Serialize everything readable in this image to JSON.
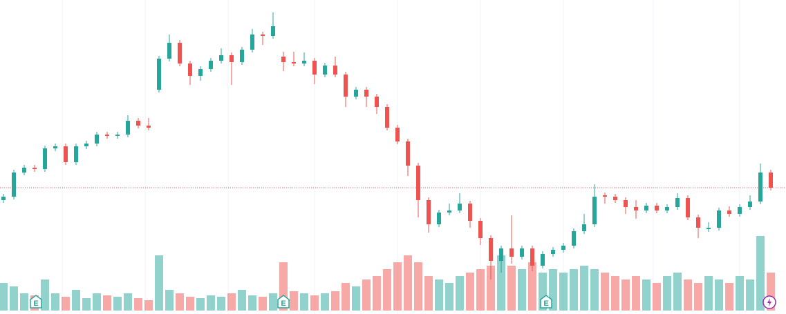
{
  "chart_data": {
    "type": "candlestick",
    "up_color": "#26a69a",
    "down_color": "#ef5350",
    "volume_up_color": "rgba(38,166,154,0.5)",
    "volume_down_color": "rgba(239,83,80,0.5)",
    "ylim": [
      0,
      455
    ],
    "volume_ylim": [
      0,
      450
    ],
    "event_label": "E",
    "open": [
      165,
      170,
      205,
      212,
      210,
      240,
      243,
      220,
      243,
      247,
      260,
      258,
      260,
      280,
      273,
      325,
      370,
      393,
      363,
      345,
      355,
      367,
      375,
      365,
      383,
      405,
      403,
      373,
      365,
      363,
      367,
      347,
      360,
      347,
      315,
      325,
      315,
      300,
      270,
      250,
      215,
      165,
      130,
      147,
      150,
      160,
      135,
      110,
      77,
      95,
      83,
      95,
      70,
      87,
      93,
      99,
      120,
      130,
      172,
      170,
      165,
      155,
      150,
      157,
      150,
      155,
      168,
      140,
      123,
      125,
      150,
      145,
      155,
      163,
      205
    ],
    "high": [
      174,
      209,
      216,
      216,
      244,
      247,
      247,
      247,
      251,
      264,
      264,
      264,
      288,
      284,
      284,
      374,
      405,
      397,
      367,
      359,
      371,
      385,
      379,
      387,
      413,
      409,
      437,
      380,
      380,
      379,
      371,
      364,
      373,
      351,
      329,
      329,
      319,
      304,
      274,
      254,
      219,
      169,
      151,
      160,
      175,
      164,
      139,
      114,
      99,
      143,
      99,
      99,
      91,
      97,
      103,
      124,
      145,
      188,
      176,
      174,
      169,
      165,
      161,
      161,
      159,
      175,
      172,
      144,
      133,
      154,
      156,
      159,
      172,
      218,
      209
    ],
    "low": [
      161,
      166,
      201,
      206,
      206,
      236,
      216,
      216,
      239,
      243,
      254,
      254,
      256,
      269,
      266,
      321,
      366,
      359,
      332,
      338,
      351,
      363,
      332,
      361,
      379,
      390,
      399,
      352,
      359,
      359,
      333,
      343,
      343,
      300,
      311,
      300,
      290,
      266,
      246,
      200,
      140,
      118,
      126,
      143,
      146,
      125,
      100,
      50,
      60,
      73,
      79,
      62,
      66,
      83,
      89,
      95,
      116,
      126,
      160,
      161,
      145,
      138,
      146,
      146,
      146,
      151,
      136,
      110,
      119,
      121,
      141,
      141,
      151,
      159,
      179
    ],
    "close": [
      170,
      205,
      212,
      210,
      240,
      243,
      220,
      243,
      247,
      260,
      258,
      260,
      280,
      273,
      270,
      370,
      393,
      363,
      345,
      355,
      367,
      375,
      365,
      383,
      405,
      403,
      417,
      365,
      363,
      367,
      347,
      360,
      347,
      315,
      325,
      315,
      300,
      270,
      250,
      215,
      165,
      130,
      147,
      150,
      160,
      135,
      110,
      77,
      95,
      83,
      95,
      70,
      87,
      93,
      99,
      120,
      130,
      170,
      170,
      165,
      155,
      150,
      157,
      150,
      155,
      168,
      140,
      125,
      125,
      150,
      145,
      155,
      163,
      205,
      183
    ],
    "volume": [
      40,
      35,
      25,
      22,
      45,
      25,
      20,
      30,
      18,
      25,
      22,
      20,
      25,
      18,
      15,
      80,
      30,
      25,
      20,
      18,
      22,
      20,
      25,
      30,
      22,
      20,
      25,
      70,
      28,
      25,
      22,
      25,
      28,
      40,
      35,
      45,
      50,
      60,
      70,
      80,
      70,
      50,
      45,
      40,
      50,
      55,
      60,
      65,
      80,
      65,
      60,
      70,
      55,
      60,
      55,
      60,
      65,
      60,
      55,
      50,
      45,
      50,
      45,
      40,
      50,
      55,
      45,
      40,
      50,
      45,
      40,
      50,
      45,
      108,
      55
    ]
  }
}
